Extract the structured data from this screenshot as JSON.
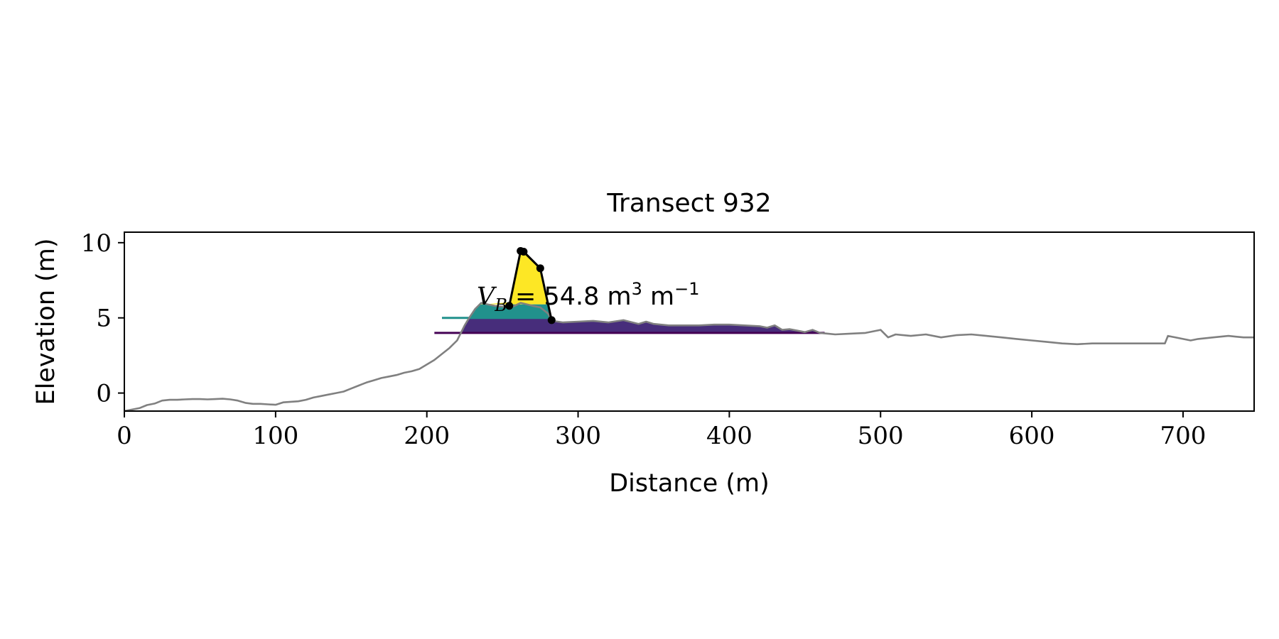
{
  "chart_data": {
    "type": "line",
    "title": "Transect 932",
    "xlabel": "Distance (m)",
    "ylabel": "Elevation (m)",
    "xlim": [
      0,
      747
    ],
    "ylim": [
      -1.2,
      10.7
    ],
    "xticks": [
      0,
      100,
      200,
      300,
      400,
      500,
      600,
      700
    ],
    "yticks": [
      0,
      5,
      10
    ],
    "grid": false,
    "legend": "none",
    "annotation": {
      "prefix": "V",
      "subscript": "B",
      "equals": "=",
      "value": "54.8",
      "unit_m": "m",
      "exp3": "3",
      "exp_neg1": "−1",
      "x": 233,
      "y": 6.45
    },
    "profile": {
      "color": "#808080",
      "x": [
        0,
        5,
        10,
        15,
        20,
        25,
        30,
        35,
        40,
        45,
        50,
        55,
        60,
        65,
        70,
        75,
        80,
        85,
        90,
        95,
        100,
        105,
        110,
        115,
        120,
        125,
        130,
        135,
        140,
        145,
        150,
        155,
        160,
        165,
        170,
        175,
        180,
        185,
        190,
        195,
        200,
        205,
        210,
        215,
        220,
        225,
        228,
        232,
        236,
        240,
        245,
        250,
        255,
        258,
        262,
        266,
        270,
        275,
        280,
        283,
        290,
        300,
        310,
        320,
        330,
        340,
        345,
        350,
        360,
        370,
        380,
        390,
        400,
        410,
        420,
        425,
        430,
        435,
        440,
        445,
        450,
        455,
        460,
        465,
        470,
        480,
        490,
        500,
        505,
        510,
        520,
        530,
        540,
        550,
        560,
        570,
        580,
        590,
        600,
        610,
        620,
        630,
        640,
        650,
        660,
        670,
        680,
        688,
        690,
        700,
        705,
        710,
        720,
        730,
        735,
        740,
        747
      ],
      "y": [
        -1.2,
        -1.1,
        -1.0,
        -0.8,
        -0.7,
        -0.5,
        -0.45,
        -0.45,
        -0.42,
        -0.4,
        -0.4,
        -0.42,
        -0.4,
        -0.38,
        -0.42,
        -0.5,
        -0.65,
        -0.72,
        -0.72,
        -0.75,
        -0.78,
        -0.62,
        -0.58,
        -0.55,
        -0.45,
        -0.3,
        -0.2,
        -0.1,
        0.0,
        0.1,
        0.3,
        0.5,
        0.7,
        0.85,
        1.0,
        1.1,
        1.2,
        1.35,
        1.45,
        1.6,
        1.9,
        2.2,
        2.6,
        3.0,
        3.5,
        4.5,
        5.0,
        5.6,
        6.0,
        5.9,
        5.8,
        5.75,
        5.7,
        5.8,
        6.0,
        5.9,
        5.8,
        5.7,
        5.3,
        4.8,
        4.7,
        4.75,
        4.8,
        4.7,
        4.85,
        4.6,
        4.75,
        4.6,
        4.5,
        4.5,
        4.5,
        4.55,
        4.55,
        4.5,
        4.45,
        4.35,
        4.5,
        4.2,
        4.25,
        4.15,
        4.05,
        4.2,
        4.0,
        3.95,
        3.9,
        3.95,
        4.0,
        4.2,
        3.7,
        3.9,
        3.8,
        3.9,
        3.7,
        3.85,
        3.9,
        3.8,
        3.7,
        3.6,
        3.5,
        3.4,
        3.3,
        3.25,
        3.3,
        3.3,
        3.3,
        3.3,
        3.3,
        3.3,
        3.8,
        3.6,
        3.5,
        3.6,
        3.7,
        3.8,
        3.75,
        3.7,
        3.7
      ]
    },
    "dune": {
      "color": "#000000",
      "x": [
        254.5,
        262,
        264,
        275,
        282.5
      ],
      "y": [
        5.8,
        9.45,
        9.4,
        8.3,
        4.85
      ]
    },
    "levels": [
      {
        "name": "",
        "z": 4.0,
        "x_start": 205,
        "x_end": 463,
        "color": "#440154",
        "fill": "#472d7b"
      },
      {
        "name": "",
        "z": 5.0,
        "x_start": 210,
        "x_end": 282,
        "color": "#21918c",
        "fill": "#21918c"
      },
      {
        "name": "",
        "z": 5.9,
        "x_start": 233,
        "x_end": 282,
        "color": "#fde725",
        "fill": "#fde725"
      }
    ]
  }
}
